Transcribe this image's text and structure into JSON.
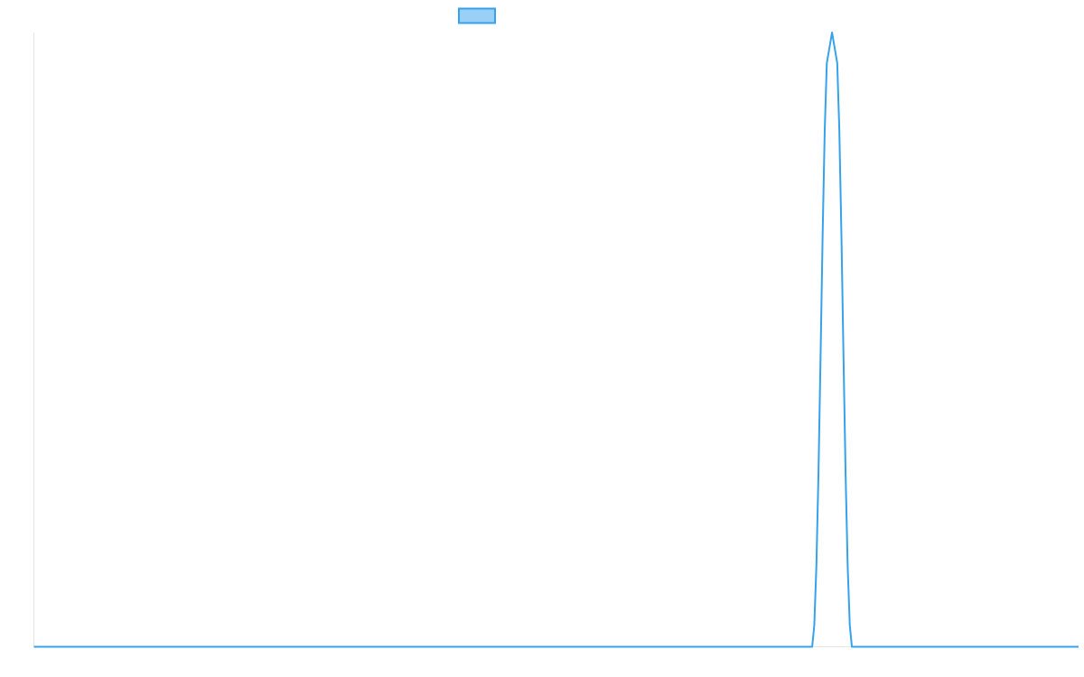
{
  "chart_data": {
    "type": "line",
    "title": "",
    "xlabel": "",
    "ylabel": "",
    "grid": false,
    "legend_position": "top-center",
    "series": [
      {
        "color": "#36a2eb",
        "fill_color": "#9ad0f5",
        "points": [
          [
            0,
            0
          ],
          [
            100,
            0
          ],
          [
            200,
            0
          ],
          [
            300,
            0
          ],
          [
            400,
            0
          ],
          [
            500,
            0
          ],
          [
            600,
            0
          ],
          [
            700,
            0
          ],
          [
            745,
            0
          ],
          [
            747,
            0.035
          ],
          [
            749,
            0.13
          ],
          [
            751,
            0.28
          ],
          [
            753,
            0.47
          ],
          [
            755,
            0.67
          ],
          [
            757,
            0.84
          ],
          [
            759,
            0.95
          ],
          [
            764,
            1.0
          ],
          [
            769,
            0.95
          ],
          [
            771,
            0.84
          ],
          [
            773,
            0.67
          ],
          [
            775,
            0.47
          ],
          [
            777,
            0.28
          ],
          [
            779,
            0.13
          ],
          [
            781,
            0.035
          ],
          [
            783,
            0
          ],
          [
            800,
            0
          ],
          [
            900,
            0
          ],
          [
            1000,
            0
          ]
        ]
      }
    ],
    "xlim": [
      0,
      1000
    ],
    "ylim": [
      0,
      1
    ]
  }
}
